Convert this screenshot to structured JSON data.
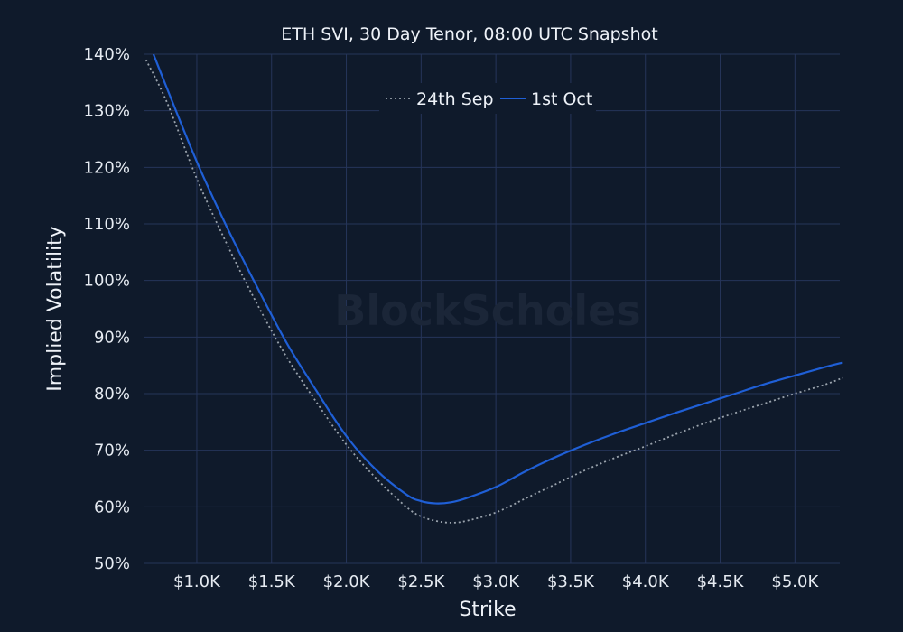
{
  "chart_data": {
    "type": "line",
    "title": "ETH SVI, 30 Day Tenor, 08:00 UTC Snapshot",
    "xlabel": "Strike",
    "ylabel": "Implied Volatility",
    "watermark": "BlockScholes",
    "xlim": [
      650,
      5300
    ],
    "ylim": [
      50,
      140
    ],
    "x_ticks": [
      1000,
      1500,
      2000,
      2500,
      3000,
      3500,
      4000,
      4500,
      5000
    ],
    "x_tick_labels": [
      "$1.0K",
      "$1.5K",
      "$2.0K",
      "$2.5K",
      "$3.0K",
      "$3.5K",
      "$4.0K",
      "$4.5K",
      "$5.0K"
    ],
    "y_ticks": [
      50,
      60,
      70,
      80,
      90,
      100,
      110,
      120,
      130,
      140
    ],
    "y_tick_labels": [
      "50%",
      "60%",
      "70%",
      "80%",
      "90%",
      "100%",
      "110%",
      "120%",
      "130%",
      "140%"
    ],
    "grid": true,
    "legend": {
      "placement": "top-center",
      "entries": [
        "24th Sep",
        "1st Oct"
      ]
    },
    "series": [
      {
        "name": "24th Sep",
        "color": "#9aa3ad",
        "dash": "dotted",
        "x": [
          660,
          800,
          1000,
          1200,
          1400,
          1600,
          1800,
          2000,
          2200,
          2400,
          2500,
          2600,
          2700,
          2800,
          3000,
          3200,
          3400,
          3600,
          3800,
          4000,
          4200,
          4400,
          4600,
          4800,
          5000,
          5200,
          5320
        ],
        "y": [
          139,
          131.5,
          118,
          106.5,
          96,
          86.5,
          78.5,
          71,
          65,
          60,
          58.3,
          57.5,
          57.2,
          57.5,
          59,
          61.5,
          64,
          66.5,
          68.7,
          70.7,
          72.8,
          74.8,
          76.6,
          78.3,
          80,
          81.6,
          82.8
        ]
      },
      {
        "name": "1st Oct",
        "color": "#1f5fd6",
        "dash": "solid",
        "x": [
          710,
          800,
          1000,
          1200,
          1400,
          1600,
          1800,
          2000,
          2200,
          2400,
          2500,
          2600,
          2700,
          2800,
          3000,
          3200,
          3400,
          3600,
          3800,
          4000,
          4200,
          4400,
          4600,
          4800,
          5000,
          5200,
          5320
        ],
        "y": [
          140,
          134,
          121,
          109.5,
          99,
          89,
          80.5,
          72.5,
          66.5,
          62.2,
          61,
          60.6,
          60.8,
          61.5,
          63.5,
          66.3,
          68.8,
          71,
          73,
          74.8,
          76.6,
          78.3,
          80,
          81.7,
          83.2,
          84.7,
          85.5
        ]
      }
    ]
  }
}
